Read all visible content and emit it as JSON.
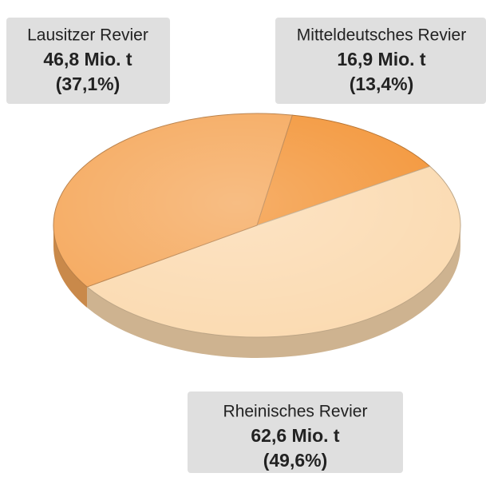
{
  "chart_data": {
    "type": "pie",
    "categories": [
      "Lausitzer Revier",
      "Mitteldeutsches Revier",
      "Rheinisches Revier"
    ],
    "values": [
      46.8,
      16.9,
      62.6
    ],
    "value_labels": [
      "46,8 Mio. t",
      "16,9 Mio. t",
      "62,6 Mio. t"
    ],
    "percent": [
      37.1,
      13.4,
      49.6
    ],
    "percent_labels": [
      "(37,1%)",
      "(13,4%)",
      "(49,6%)"
    ],
    "colors": [
      "#f5a75a",
      "#f39436",
      "#fbdab0"
    ]
  }
}
